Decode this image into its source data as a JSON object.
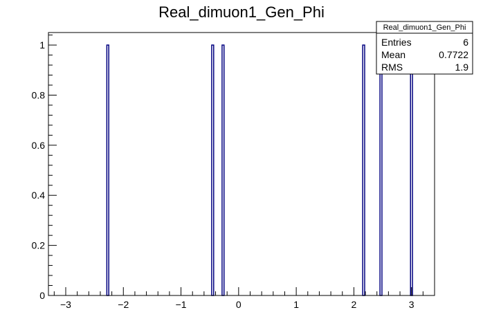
{
  "chart_data": {
    "type": "bar",
    "title": "Real_dimuon1_Gen_Phi",
    "xlabel": "",
    "ylabel": "",
    "xlim": [
      -3.3,
      3.4
    ],
    "ylim": [
      0,
      1.05
    ],
    "x_ticks": [
      -3,
      -2,
      -1,
      0,
      1,
      2,
      3
    ],
    "x_tick_labels": [
      "−3",
      "−2",
      "−1",
      "0",
      "1",
      "2",
      "3"
    ],
    "y_ticks": [
      0,
      0.2,
      0.4,
      0.6,
      0.8,
      1
    ],
    "y_tick_labels": [
      "0",
      "0.2",
      "0.4",
      "0.6",
      "0.8",
      "1"
    ],
    "bar_color": "#000080",
    "bin_width": 0.034,
    "bins": [
      {
        "x": -2.27,
        "count": 1
      },
      {
        "x": -0.45,
        "count": 1
      },
      {
        "x": -0.27,
        "count": 1
      },
      {
        "x": 2.17,
        "count": 1
      },
      {
        "x": 2.47,
        "count": 1
      },
      {
        "x": 3.0,
        "count": 1
      }
    ],
    "stats_box": {
      "name": "Real_dimuon1_Gen_Phi",
      "rows": [
        {
          "label": "Entries",
          "value": "6"
        },
        {
          "label": "Mean",
          "value": "0.7722"
        },
        {
          "label": "RMS",
          "value": "1.9"
        }
      ]
    }
  }
}
